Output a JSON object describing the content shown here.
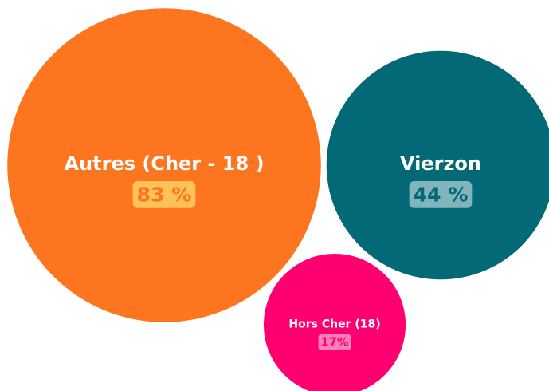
{
  "chart_data": {
    "type": "bubble",
    "categories": [
      "Autres (Cher - 18 )",
      "Vierzon",
      "Hors Cher (18)"
    ],
    "values": [
      83,
      44,
      17
    ],
    "value_labels": [
      "83 %",
      "44 %",
      "17%"
    ],
    "colors": [
      "#fd761f",
      "#046977",
      "#fe0070"
    ]
  }
}
